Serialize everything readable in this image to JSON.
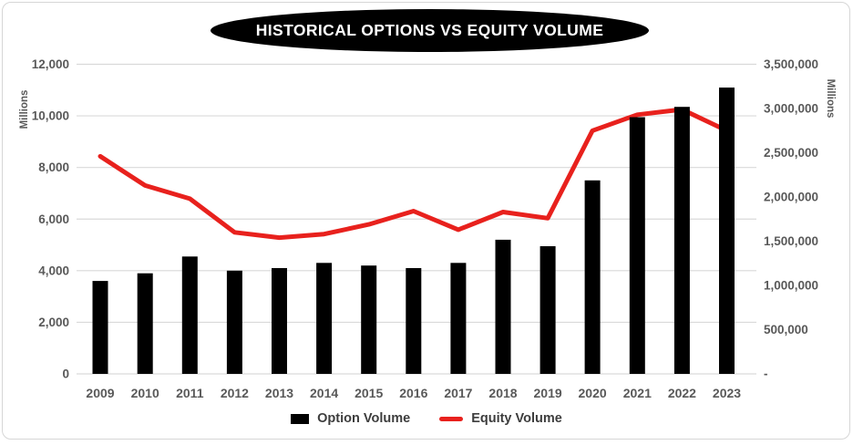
{
  "colors": {
    "bar": "#000000",
    "line": "#e8211d",
    "grid": "#d9d9d9",
    "axis_text": "#595959",
    "legend_text": "#3d3d3d",
    "title_bg": "#000000",
    "title_text": "#ffffff",
    "card_border": "#d6d6d6"
  },
  "chart_data": {
    "type": "bar",
    "subtype": "combo-bar-line-dual-axis",
    "title": "HISTORICAL OPTIONS VS EQUITY VOLUME",
    "categories": [
      "2009",
      "2010",
      "2011",
      "2012",
      "2013",
      "2014",
      "2015",
      "2016",
      "2017",
      "2018",
      "2019",
      "2020",
      "2021",
      "2022",
      "2023"
    ],
    "series": [
      {
        "name": "Option Volume",
        "type": "bar",
        "axis": "left",
        "color": "#000000",
        "values": [
          3600,
          3900,
          4550,
          4000,
          4100,
          4300,
          4200,
          4100,
          4300,
          5200,
          4950,
          7500,
          9950,
          10350,
          11100
        ]
      },
      {
        "name": "Equity Volume",
        "type": "line",
        "axis": "right",
        "color": "#e8211d",
        "values": [
          2460000,
          2130000,
          1980000,
          1600000,
          1540000,
          1580000,
          1690000,
          1840000,
          1630000,
          1830000,
          1760000,
          2750000,
          2930000,
          2990000,
          2750000
        ]
      }
    ],
    "left_axis": {
      "label": "Millions",
      "min": 0,
      "max": 12000,
      "tick_values": [
        0,
        2000,
        4000,
        6000,
        8000,
        10000,
        12000
      ],
      "tick_labels": [
        "0",
        "2,000",
        "4,000",
        "6,000",
        "8,000",
        "10,000",
        "12,000"
      ]
    },
    "right_axis": {
      "label": "Millions",
      "min": 0,
      "max": 3500000,
      "tick_values": [
        0,
        500000,
        1000000,
        1500000,
        2000000,
        2500000,
        3000000,
        3500000
      ],
      "tick_labels": [
        "-",
        "500,000",
        "1,000,000",
        "1,500,000",
        "2,000,000",
        "2,500,000",
        "3,000,000",
        "3,500,000"
      ]
    },
    "legend": {
      "position": "bottom",
      "items": [
        {
          "label": "Option Volume",
          "swatch": "bar",
          "color": "#000000"
        },
        {
          "label": "Equity Volume",
          "swatch": "line",
          "color": "#e8211d"
        }
      ]
    },
    "grid": true
  }
}
